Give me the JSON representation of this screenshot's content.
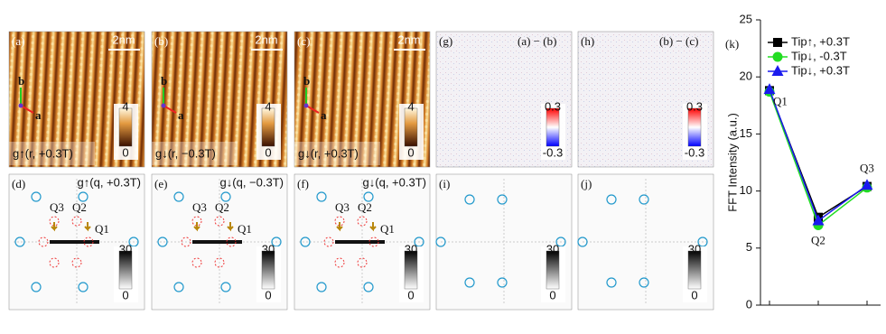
{
  "panels": [
    {
      "kind": "topo",
      "label": "(a)",
      "scale": "2nm",
      "caption": "g↑(r, +0.3T)",
      "lattice": [
        "b",
        "a"
      ],
      "cbar": [
        "4",
        "0"
      ]
    },
    {
      "kind": "topo",
      "label": "(b)",
      "scale": "2nm",
      "caption": "g↓(r, −0.3T)",
      "lattice": [
        "b",
        "a"
      ],
      "cbar": [
        "4",
        "0"
      ]
    },
    {
      "kind": "topo",
      "label": "(c)",
      "scale": "2nm",
      "caption": "g↓(r, +0.3T)",
      "lattice": [
        "b",
        "a"
      ],
      "cbar": [
        "4",
        "0"
      ]
    },
    {
      "kind": "diff",
      "label": "(g)",
      "caption": "(a) − (b)",
      "cbar": [
        "0.3",
        "-0.3"
      ]
    },
    {
      "kind": "diff",
      "label": "(h)",
      "caption": "(b) − (c)",
      "cbar": [
        "0.3",
        "-0.3"
      ]
    },
    {
      "kind": "fft",
      "label": "(d)",
      "caption": "g↑(q, +0.3T)",
      "q": [
        "Q3",
        "Q2",
        "Q1"
      ],
      "cbar": [
        "30",
        "0"
      ]
    },
    {
      "kind": "fft",
      "label": "(e)",
      "caption": "g↓(q, −0.3T)",
      "q": [
        "Q3",
        "Q2",
        "Q1"
      ],
      "cbar": [
        "30",
        "0"
      ]
    },
    {
      "kind": "fft",
      "label": "(f)",
      "caption": "g↓(q, +0.3T)",
      "q": [
        "Q3",
        "Q2",
        "Q1"
      ],
      "cbar": [
        "30",
        "0"
      ]
    },
    {
      "kind": "fft",
      "label": "(i)",
      "cbar": [
        "30",
        "0"
      ]
    },
    {
      "kind": "fft",
      "label": "(j)",
      "cbar": [
        "30",
        "0"
      ]
    }
  ],
  "chart_data": {
    "type": "line",
    "panel_label": "(k)",
    "y_label": "FFT  Intensity (a.u.)",
    "categories": [
      "Q1",
      "Q2",
      "Q3"
    ],
    "ylim": [
      0,
      25
    ],
    "yticks": [
      0,
      5,
      10,
      15,
      20,
      25
    ],
    "series": [
      {
        "name": "Tip↑, +0.3T",
        "color": "#000000",
        "marker": "square",
        "values": [
          18.8,
          7.7,
          10.4
        ]
      },
      {
        "name": "Tip↓, -0.3T",
        "color": "#22dd22",
        "marker": "circle",
        "values": [
          18.7,
          7.0,
          10.3
        ]
      },
      {
        "name": "Tip↓, +0.3T",
        "color": "#1a1aee",
        "marker": "triangle",
        "values": [
          18.9,
          7.4,
          10.5
        ]
      }
    ]
  }
}
